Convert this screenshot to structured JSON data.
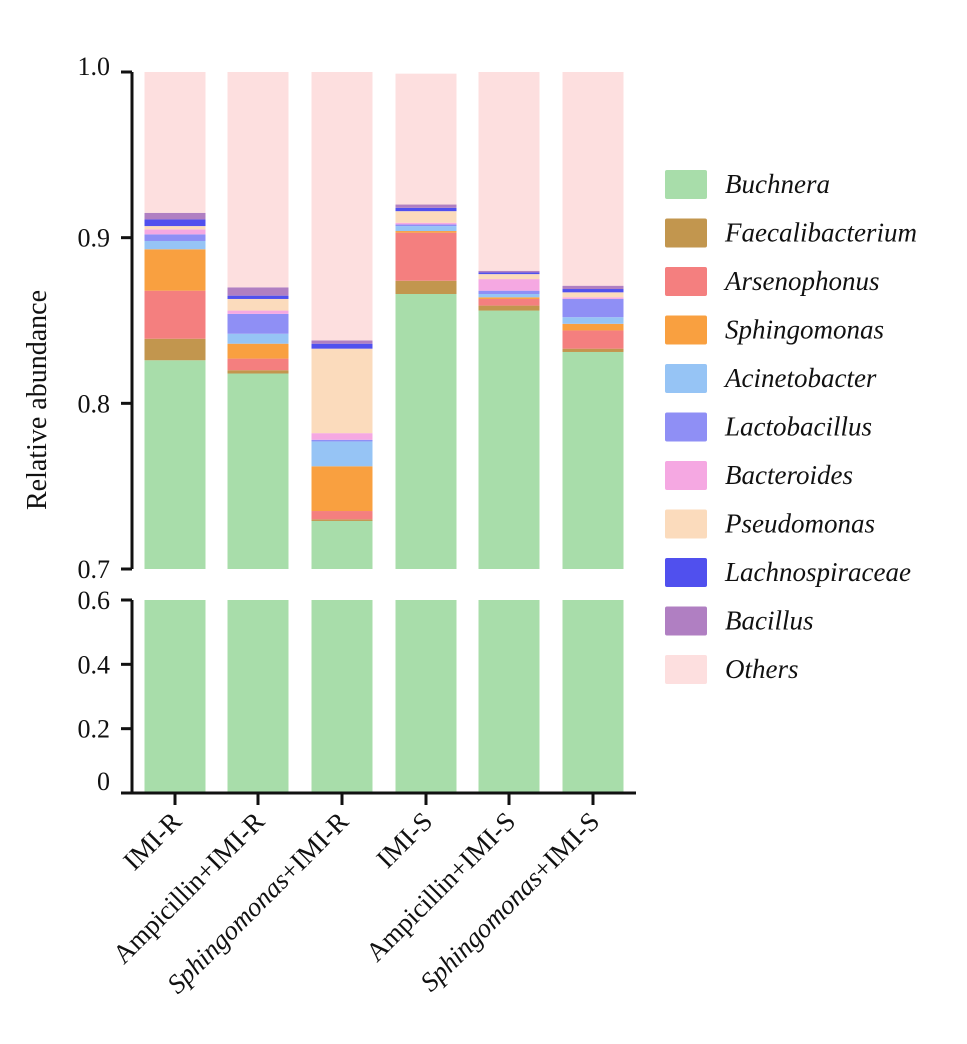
{
  "chart_data": {
    "type": "stacked-bar",
    "ylabel": "Relative abundance",
    "axis_break": {
      "lower_range": [
        0,
        0.6
      ],
      "upper_range": [
        0.7,
        1.0
      ]
    },
    "y_ticks_lower": [
      "0",
      "0.2",
      "0.4",
      "0.6"
    ],
    "y_ticks_upper": [
      "0.7",
      "0.8",
      "0.9",
      "1.0"
    ],
    "y_tick_values_lower": [
      0,
      0.2,
      0.4,
      0.6
    ],
    "y_tick_values_upper": [
      0.7,
      0.8,
      0.9,
      1.0
    ],
    "categories": [
      {
        "italic": "",
        "plain": "IMI-R"
      },
      {
        "italic": "",
        "plain": "Ampicillin+IMI-R"
      },
      {
        "italic": "Sphingomonas",
        "plain": "+IMI-R"
      },
      {
        "italic": "",
        "plain": "IMI-S"
      },
      {
        "italic": "",
        "plain": "Ampicillin+IMI-S"
      },
      {
        "italic": "Sphingomonas",
        "plain": "+IMI-S"
      }
    ],
    "series": [
      {
        "name": "Buchnera",
        "color": "#a8ddaa",
        "values": [
          0.826,
          0.818,
          0.729,
          0.866,
          0.856,
          0.831
        ]
      },
      {
        "name": "Faecalibacterium",
        "color": "#c2964e",
        "values": [
          0.013,
          0.002,
          0.001,
          0.008,
          0.003,
          0.002
        ]
      },
      {
        "name": "Arsenophonus",
        "color": "#f47f7f",
        "values": [
          0.029,
          0.007,
          0.005,
          0.029,
          0.004,
          0.011
        ]
      },
      {
        "name": "Sphingomonas",
        "color": "#f9a040",
        "values": [
          0.025,
          0.009,
          0.027,
          0.001,
          0.001,
          0.004
        ]
      },
      {
        "name": "Acinetobacter",
        "color": "#96c4f5",
        "values": [
          0.005,
          0.006,
          0.015,
          0.003,
          0.002,
          0.004
        ]
      },
      {
        "name": "Lactobacillus",
        "color": "#8f8ff5",
        "values": [
          0.004,
          0.012,
          0.001,
          0.001,
          0.002,
          0.011
        ]
      },
      {
        "name": "Bacteroides",
        "color": "#f5a8e2",
        "values": [
          0.003,
          0.002,
          0.004,
          0.001,
          0.007,
          0.001
        ]
      },
      {
        "name": "Pseudomonas",
        "color": "#fbdbbc",
        "values": [
          0.002,
          0.007,
          0.051,
          0.007,
          0.003,
          0.003
        ]
      },
      {
        "name": "Lachnospiraceae",
        "color": "#5050ee",
        "values": [
          0.004,
          0.002,
          0.003,
          0.002,
          0.001,
          0.002
        ]
      },
      {
        "name": "Bacillus",
        "color": "#b07fc2",
        "values": [
          0.004,
          0.005,
          0.002,
          0.002,
          0.001,
          0.002
        ]
      },
      {
        "name": "Others",
        "color": "#fddfdf",
        "values": [
          0.085,
          0.13,
          0.162,
          0.079,
          0.12,
          0.129
        ]
      }
    ]
  }
}
